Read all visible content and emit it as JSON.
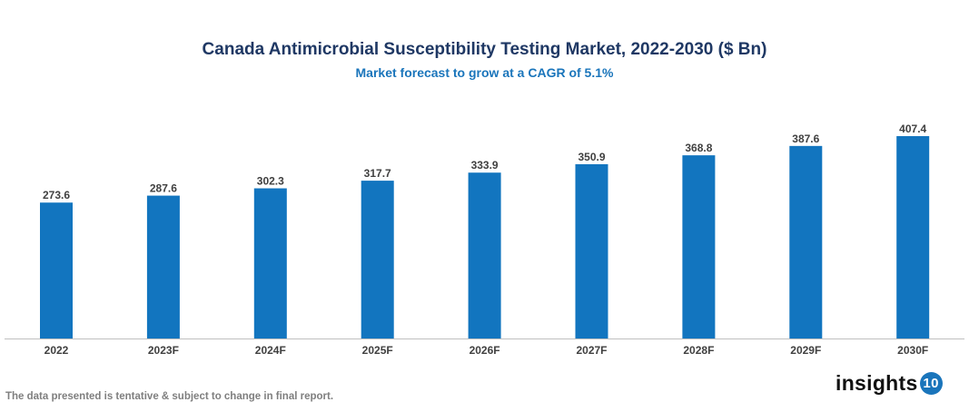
{
  "chart_data": {
    "type": "bar",
    "title": "Canada Antimicrobial Susceptibility Testing Market, 2022-2030 ($ Bn)",
    "subtitle": "Market forecast to grow at a CAGR of 5.1%",
    "categories": [
      "2022",
      "2023F",
      "2024F",
      "2025F",
      "2026F",
      "2027F",
      "2028F",
      "2029F",
      "2030F"
    ],
    "values": [
      273.6,
      287.6,
      302.3,
      317.7,
      333.9,
      350.9,
      368.8,
      387.6,
      407.4
    ],
    "ylim": [
      0,
      407.4
    ],
    "grid": false,
    "bar_color": "#1275bf",
    "data_labels": true
  },
  "footnote": "The data presented is tentative & subject to change in final report.",
  "logo": {
    "text": "insights",
    "number": "10"
  }
}
